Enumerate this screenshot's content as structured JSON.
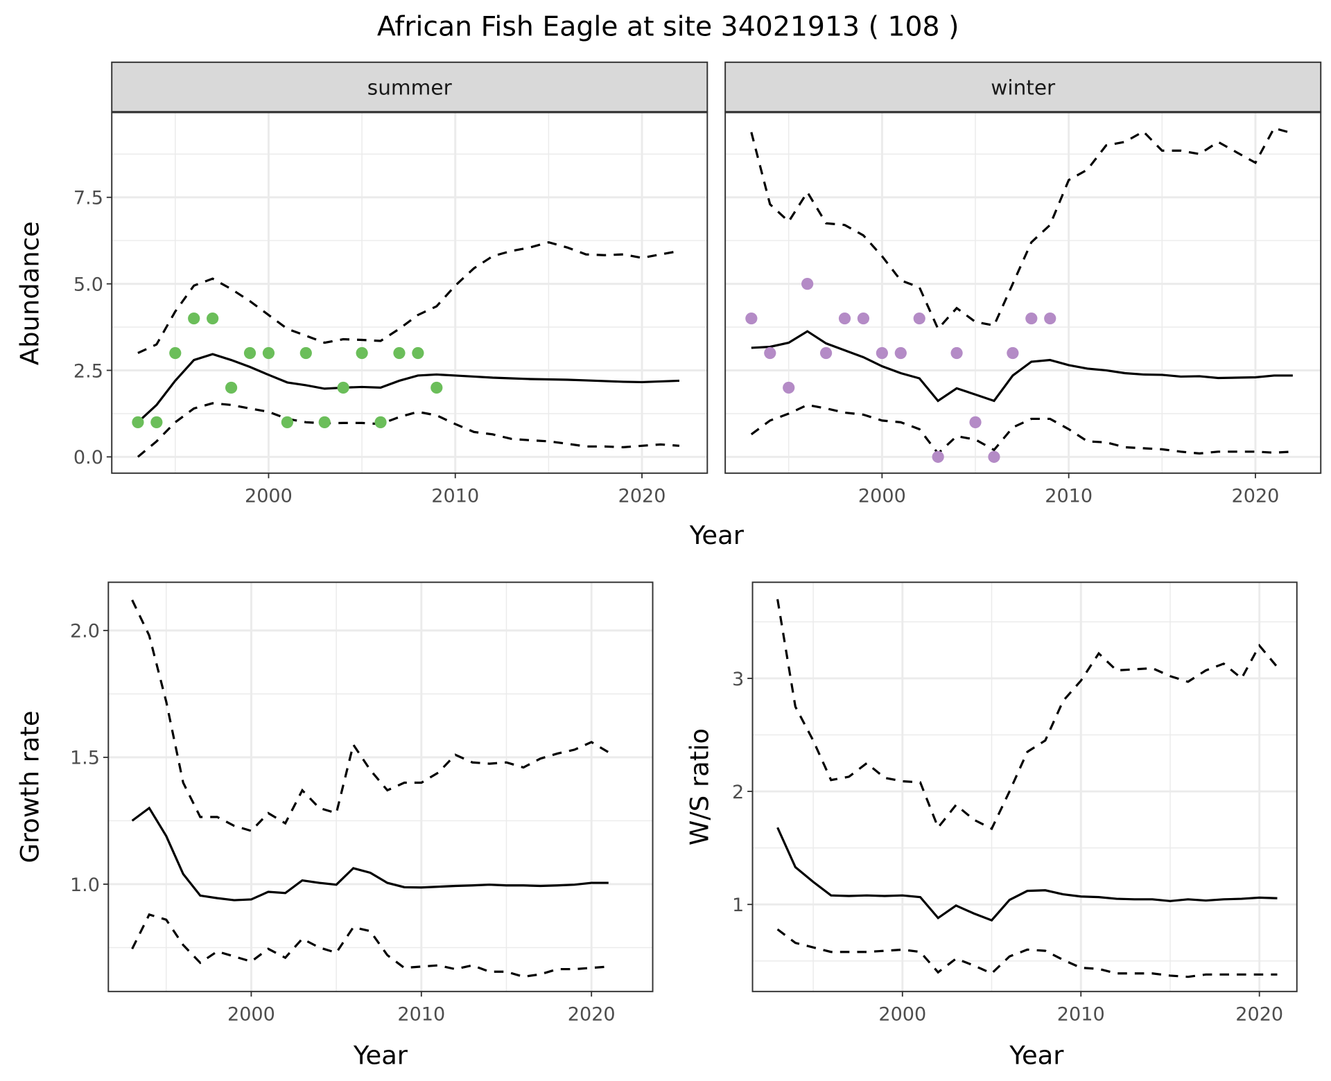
{
  "title": "African Fish Eagle at site 34021913 ( 108 )",
  "colors": {
    "summer": "#6BBE5A",
    "winter": "#B48BC6",
    "line": "#000000",
    "grid": "#EBEBEB",
    "strip": "#D9D9D9"
  },
  "chart_data": [
    {
      "type": "line",
      "panel": "summer",
      "strip_label": "summer",
      "xlabel": "Year",
      "ylabel": "Abundance",
      "xlim": [
        1991.6,
        2023.5
      ],
      "ylim": [
        -0.47,
        9.95
      ],
      "xticks": [
        2000,
        2010,
        2020
      ],
      "xtick_labels": [
        "2000",
        "2010",
        "2020"
      ],
      "yticks": [
        0,
        2.5,
        5,
        7.5
      ],
      "ytick_labels": [
        "0.0",
        "2.5",
        "5.0",
        "7.5"
      ],
      "x": [
        1993,
        1994,
        1995,
        1996,
        1997,
        1998,
        1999,
        2000,
        2001,
        2002,
        2003,
        2004,
        2005,
        2006,
        2007,
        2008,
        2009,
        2010,
        2011,
        2012,
        2013,
        2014,
        2015,
        2016,
        2017,
        2018,
        2019,
        2020,
        2021,
        2022
      ],
      "mean": [
        1.0,
        1.5,
        2.2,
        2.8,
        2.97,
        2.8,
        2.6,
        2.37,
        2.15,
        2.07,
        1.97,
        2.0,
        2.02,
        2.0,
        2.2,
        2.35,
        2.38,
        2.35,
        2.32,
        2.29,
        2.27,
        2.25,
        2.24,
        2.23,
        2.21,
        2.19,
        2.17,
        2.16,
        2.18,
        2.2
      ],
      "upper": [
        3.0,
        3.25,
        4.2,
        4.95,
        5.15,
        4.85,
        4.5,
        4.1,
        3.7,
        3.5,
        3.3,
        3.4,
        3.38,
        3.35,
        3.7,
        4.1,
        4.35,
        4.95,
        5.45,
        5.8,
        5.95,
        6.05,
        6.2,
        6.05,
        5.85,
        5.83,
        5.85,
        5.75,
        5.85,
        5.95
      ],
      "lower": [
        0.0,
        0.45,
        1.0,
        1.4,
        1.55,
        1.5,
        1.4,
        1.3,
        1.1,
        1.0,
        0.97,
        0.98,
        0.98,
        0.95,
        1.15,
        1.3,
        1.2,
        0.95,
        0.72,
        0.65,
        0.52,
        0.48,
        0.45,
        0.38,
        0.3,
        0.3,
        0.28,
        0.32,
        0.36,
        0.32
      ],
      "points": {
        "x": [
          1993,
          1994,
          1995,
          1996,
          1997,
          1998,
          1999,
          2000,
          2001,
          2002,
          2003,
          2004,
          2005,
          2006,
          2007,
          2008,
          2009
        ],
        "y": [
          1,
          1,
          3,
          4,
          4,
          2,
          3,
          3,
          1,
          3,
          1,
          2,
          3,
          1,
          3,
          3,
          2
        ]
      }
    },
    {
      "type": "line",
      "panel": "winter",
      "strip_label": "winter",
      "xlabel": "Year",
      "ylabel": "Abundance",
      "xlim": [
        1991.6,
        2023.5
      ],
      "ylim": [
        -0.47,
        9.95
      ],
      "xticks": [
        2000,
        2010,
        2020
      ],
      "xtick_labels": [
        "2000",
        "2010",
        "2020"
      ],
      "yticks": [
        0,
        2.5,
        5,
        7.5
      ],
      "ytick_labels": [],
      "x": [
        1993,
        1994,
        1995,
        1996,
        1997,
        1998,
        1999,
        2000,
        2001,
        2002,
        2003,
        2004,
        2005,
        2006,
        2007,
        2008,
        2009,
        2010,
        2011,
        2012,
        2013,
        2014,
        2015,
        2016,
        2017,
        2018,
        2019,
        2020,
        2021,
        2022
      ],
      "mean": [
        3.15,
        3.18,
        3.3,
        3.63,
        3.28,
        3.08,
        2.88,
        2.62,
        2.42,
        2.27,
        1.62,
        1.98,
        1.8,
        1.62,
        2.35,
        2.75,
        2.8,
        2.65,
        2.55,
        2.5,
        2.42,
        2.38,
        2.37,
        2.32,
        2.33,
        2.28,
        2.29,
        2.3,
        2.35,
        2.35
      ],
      "upper": [
        9.38,
        7.3,
        6.8,
        7.65,
        6.75,
        6.7,
        6.4,
        5.8,
        5.1,
        4.9,
        3.7,
        4.3,
        3.9,
        3.8,
        5.0,
        6.2,
        6.7,
        8.0,
        8.3,
        9.0,
        9.1,
        9.4,
        8.85,
        8.85,
        8.75,
        9.1,
        8.8,
        8.5,
        9.5,
        9.35
      ],
      "lower": [
        0.65,
        1.05,
        1.25,
        1.5,
        1.4,
        1.28,
        1.22,
        1.05,
        1.0,
        0.8,
        0.1,
        0.6,
        0.5,
        0.2,
        0.85,
        1.1,
        1.1,
        0.8,
        0.45,
        0.42,
        0.28,
        0.25,
        0.22,
        0.15,
        0.1,
        0.15,
        0.15,
        0.15,
        0.12,
        0.15
      ],
      "points": {
        "x": [
          1993,
          1994,
          1995,
          1996,
          1997,
          1998,
          1999,
          2000,
          2001,
          2002,
          2003,
          2004,
          2005,
          2006,
          2007,
          2008,
          2009
        ],
        "y": [
          4,
          3,
          2,
          5,
          3,
          4,
          4,
          3,
          3,
          4,
          0,
          3,
          1,
          0,
          3,
          4,
          4
        ]
      }
    },
    {
      "type": "line",
      "panel": "growth",
      "xlabel": "Year",
      "ylabel": "Growth rate",
      "xlim": [
        1991.6,
        2023.6
      ],
      "ylim": [
        0.577,
        2.19
      ],
      "xticks": [
        2000,
        2010,
        2020
      ],
      "xtick_labels": [
        "2000",
        "2010",
        "2020"
      ],
      "yticks": [
        1.0,
        1.5,
        2.0
      ],
      "ytick_labels": [
        "1.0",
        "1.5",
        "2.0"
      ],
      "x": [
        1993,
        1994,
        1995,
        1996,
        1997,
        1998,
        1999,
        2000,
        2001,
        2002,
        2003,
        2004,
        2005,
        2006,
        2007,
        2008,
        2009,
        2010,
        2011,
        2012,
        2013,
        2014,
        2015,
        2016,
        2017,
        2018,
        2019,
        2020,
        2021
      ],
      "mean": [
        1.25,
        1.3,
        1.19,
        1.04,
        0.955,
        0.945,
        0.937,
        0.94,
        0.97,
        0.965,
        1.015,
        1.005,
        0.998,
        1.063,
        1.045,
        1.005,
        0.988,
        0.987,
        0.99,
        0.993,
        0.995,
        0.998,
        0.995,
        0.995,
        0.993,
        0.995,
        0.998,
        1.005,
        1.005
      ],
      "upper": [
        2.12,
        1.98,
        1.72,
        1.4,
        1.265,
        1.265,
        1.23,
        1.21,
        1.28,
        1.24,
        1.37,
        1.3,
        1.28,
        1.55,
        1.45,
        1.37,
        1.4,
        1.4,
        1.44,
        1.51,
        1.48,
        1.475,
        1.48,
        1.46,
        1.495,
        1.515,
        1.53,
        1.56,
        1.52
      ],
      "lower": [
        0.745,
        0.88,
        0.86,
        0.76,
        0.69,
        0.735,
        0.715,
        0.695,
        0.745,
        0.71,
        0.785,
        0.75,
        0.73,
        0.83,
        0.815,
        0.72,
        0.67,
        0.675,
        0.68,
        0.665,
        0.68,
        0.655,
        0.655,
        0.635,
        0.645,
        0.665,
        0.665,
        0.67,
        0.675
      ]
    },
    {
      "type": "line",
      "panel": "ratio",
      "xlabel": "Year",
      "ylabel": "W/S ratio",
      "xlim": [
        1991.6,
        2022.1
      ],
      "ylim": [
        0.23,
        3.85
      ],
      "xticks": [
        2000,
        2010,
        2020
      ],
      "xtick_labels": [
        "2000",
        "2010",
        "2020"
      ],
      "yticks": [
        1,
        2,
        3
      ],
      "ytick_labels": [
        "1",
        "2",
        "3"
      ],
      "x": [
        1993,
        1994,
        1995,
        1996,
        1997,
        1998,
        1999,
        2000,
        2001,
        2002,
        2003,
        2004,
        2005,
        2006,
        2007,
        2008,
        2009,
        2010,
        2011,
        2012,
        2013,
        2014,
        2015,
        2016,
        2017,
        2018,
        2019,
        2020,
        2021
      ],
      "mean": [
        1.68,
        1.33,
        1.2,
        1.08,
        1.075,
        1.08,
        1.075,
        1.08,
        1.065,
        0.88,
        0.99,
        0.92,
        0.86,
        1.04,
        1.12,
        1.125,
        1.09,
        1.07,
        1.065,
        1.05,
        1.045,
        1.045,
        1.03,
        1.045,
        1.035,
        1.045,
        1.05,
        1.06,
        1.055
      ],
      "upper": [
        3.7,
        2.75,
        2.45,
        2.1,
        2.13,
        2.25,
        2.12,
        2.09,
        2.08,
        1.68,
        1.88,
        1.75,
        1.67,
        2.0,
        2.35,
        2.45,
        2.8,
        2.98,
        3.22,
        3.07,
        3.08,
        3.09,
        3.02,
        2.97,
        3.07,
        3.13,
        3.0,
        3.29,
        3.1
      ],
      "lower": [
        0.78,
        0.66,
        0.62,
        0.58,
        0.58,
        0.58,
        0.59,
        0.6,
        0.58,
        0.4,
        0.52,
        0.46,
        0.39,
        0.54,
        0.6,
        0.59,
        0.51,
        0.44,
        0.43,
        0.39,
        0.39,
        0.39,
        0.37,
        0.36,
        0.38,
        0.38,
        0.38,
        0.38,
        0.38
      ]
    }
  ],
  "shared_xlabel_top": "Year"
}
